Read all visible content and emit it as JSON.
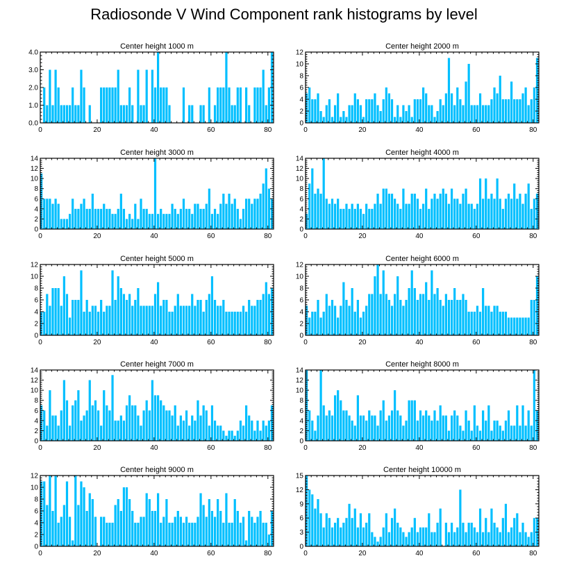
{
  "title": "Radiosonde V Wind Component rank histograms by level",
  "colors": {
    "bar": "#00BFFF",
    "axis": "#000000",
    "background": "#ffffff"
  },
  "chart_data": [
    {
      "type": "bar",
      "title": "Center height 1000 m",
      "xlim": [
        0,
        82
      ],
      "ylim": [
        0,
        4
      ],
      "xticks": [
        0,
        20,
        40,
        60,
        80
      ],
      "yticks": [
        0,
        1,
        2,
        3,
        4
      ],
      "ytick_labels": [
        "0.0",
        "1.0",
        "2.0",
        "3.0",
        "4.0"
      ],
      "values": [
        0,
        2,
        1,
        3,
        1,
        3,
        2,
        1,
        1,
        1,
        1,
        2,
        1,
        1,
        3,
        2,
        0,
        1,
        0,
        0,
        0,
        2,
        2,
        2,
        2,
        2,
        2,
        3,
        1,
        1,
        1,
        2,
        1,
        0,
        3,
        1,
        1,
        3,
        0,
        3,
        2,
        4,
        2,
        2,
        2,
        1,
        0,
        0,
        0,
        0,
        2,
        0,
        1,
        1,
        0,
        0,
        1,
        1,
        0,
        2,
        0,
        1,
        2,
        2,
        2,
        4,
        2,
        1,
        1,
        2,
        2,
        0,
        2,
        1,
        0,
        2,
        2,
        2,
        3,
        1,
        2,
        4
      ]
    },
    {
      "type": "bar",
      "title": "Center height 2000 m",
      "xlim": [
        0,
        82
      ],
      "ylim": [
        0,
        12
      ],
      "xticks": [
        0,
        20,
        40,
        60,
        80
      ],
      "yticks": [
        0,
        2,
        4,
        6,
        8,
        10,
        12
      ],
      "ytick_labels": [
        "0",
        "2",
        "4",
        "6",
        "8",
        "10",
        "12"
      ],
      "values": [
        5,
        6,
        4,
        4,
        5,
        2,
        1,
        3,
        4,
        1,
        3,
        5,
        1,
        2,
        1,
        3,
        3,
        5,
        4,
        3,
        1,
        4,
        4,
        4,
        5,
        3,
        2,
        4,
        6,
        5,
        4,
        1,
        3,
        1,
        3,
        2,
        3,
        1,
        4,
        4,
        4,
        6,
        5,
        3,
        3,
        1,
        2,
        4,
        3,
        5,
        11,
        5,
        3,
        6,
        4,
        3,
        7,
        10,
        3,
        3,
        3,
        5,
        3,
        3,
        3,
        4,
        6,
        5,
        8,
        4,
        4,
        4,
        7,
        4,
        4,
        4,
        5,
        6,
        3,
        4,
        6,
        11
      ]
    },
    {
      "type": "bar",
      "title": "Center height 3000 m",
      "xlim": [
        0,
        82
      ],
      "ylim": [
        0,
        14
      ],
      "xticks": [
        0,
        20,
        40,
        60,
        80
      ],
      "yticks": [
        0,
        2,
        4,
        6,
        8,
        10,
        12,
        14
      ],
      "ytick_labels": [
        "0",
        "2",
        "4",
        "6",
        "8",
        "10",
        "12",
        "14"
      ],
      "values": [
        11,
        6,
        6,
        6,
        5,
        6,
        5,
        2,
        2,
        2,
        3,
        6,
        4,
        4,
        5,
        6,
        4,
        4,
        7,
        4,
        4,
        4,
        5,
        4,
        4,
        3,
        3,
        4,
        7,
        4,
        2,
        3,
        2,
        5,
        2,
        6,
        4,
        4,
        3,
        3,
        14,
        3,
        4,
        3,
        3,
        3,
        5,
        4,
        3,
        4,
        6,
        4,
        4,
        3,
        5,
        5,
        4,
        4,
        5,
        8,
        3,
        4,
        3,
        5,
        7,
        5,
        7,
        5,
        6,
        4,
        2,
        4,
        6,
        6,
        5,
        6,
        6,
        7,
        9,
        12,
        8,
        6
      ]
    },
    {
      "type": "bar",
      "title": "Center height 4000 m",
      "xlim": [
        0,
        82
      ],
      "ylim": [
        0,
        14
      ],
      "xticks": [
        0,
        20,
        40,
        60,
        80
      ],
      "yticks": [
        0,
        2,
        4,
        6,
        8,
        10,
        12,
        14
      ],
      "ytick_labels": [
        "0",
        "2",
        "4",
        "6",
        "8",
        "10",
        "12",
        "14"
      ],
      "values": [
        3,
        9,
        12,
        7,
        8,
        7,
        14,
        6,
        5,
        6,
        5,
        6,
        4,
        4,
        5,
        4,
        5,
        4,
        5,
        4,
        3,
        5,
        4,
        4,
        5,
        7,
        5,
        8,
        8,
        7,
        7,
        6,
        5,
        4,
        8,
        5,
        5,
        7,
        7,
        6,
        4,
        5,
        8,
        4,
        6,
        7,
        6,
        7,
        8,
        7,
        5,
        8,
        6,
        6,
        5,
        7,
        8,
        5,
        5,
        4,
        5,
        10,
        6,
        10,
        6,
        7,
        6,
        10,
        6,
        4,
        6,
        7,
        6,
        9,
        6,
        7,
        5,
        7,
        9,
        4,
        6,
        7
      ]
    },
    {
      "type": "bar",
      "title": "Center height 5000 m",
      "xlim": [
        0,
        82
      ],
      "ylim": [
        0,
        12
      ],
      "xticks": [
        0,
        20,
        40,
        60,
        80
      ],
      "yticks": [
        0,
        2,
        4,
        6,
        8,
        10,
        12
      ],
      "ytick_labels": [
        "0",
        "2",
        "4",
        "6",
        "8",
        "10",
        "12"
      ],
      "values": [
        4,
        4,
        7,
        5,
        8,
        8,
        8,
        5,
        10,
        7,
        3,
        6,
        6,
        6,
        11,
        4,
        6,
        4,
        5,
        5,
        4,
        6,
        4,
        5,
        5,
        11,
        6,
        10,
        8,
        7,
        6,
        7,
        5,
        6,
        8,
        5,
        5,
        5,
        5,
        5,
        7,
        9,
        5,
        6,
        6,
        4,
        4,
        5,
        7,
        5,
        5,
        5,
        5,
        7,
        5,
        6,
        6,
        4,
        6,
        7,
        10,
        6,
        5,
        5,
        6,
        4,
        4,
        4,
        4,
        4,
        4,
        5,
        4,
        6,
        5,
        5,
        6,
        6,
        7,
        9,
        7,
        8
      ]
    },
    {
      "type": "bar",
      "title": "Center height 6000 m",
      "xlim": [
        0,
        82
      ],
      "ylim": [
        0,
        12
      ],
      "xticks": [
        0,
        20,
        40,
        60,
        80
      ],
      "yticks": [
        0,
        2,
        4,
        6,
        8,
        10,
        12
      ],
      "ytick_labels": [
        "0",
        "2",
        "4",
        "6",
        "8",
        "10",
        "12"
      ],
      "values": [
        5,
        3,
        4,
        4,
        6,
        3,
        4,
        7,
        5,
        6,
        5,
        3,
        5,
        9,
        6,
        5,
        8,
        4,
        6,
        3,
        4,
        5,
        7,
        7,
        10,
        12,
        7,
        11,
        7,
        6,
        5,
        7,
        10,
        6,
        5,
        6,
        8,
        11,
        8,
        6,
        7,
        7,
        9,
        6,
        11,
        7,
        8,
        6,
        5,
        7,
        6,
        6,
        8,
        6,
        6,
        7,
        6,
        4,
        4,
        4,
        5,
        4,
        8,
        5,
        5,
        4,
        5,
        5,
        4,
        4,
        4,
        3,
        3,
        3,
        3,
        3,
        3,
        3,
        3,
        6,
        6,
        10
      ]
    },
    {
      "type": "bar",
      "title": "Center height 7000 m",
      "xlim": [
        0,
        82
      ],
      "ylim": [
        0,
        14
      ],
      "xticks": [
        0,
        20,
        40,
        60,
        80
      ],
      "yticks": [
        0,
        2,
        4,
        6,
        8,
        10,
        12,
        14
      ],
      "ytick_labels": [
        "0",
        "2",
        "4",
        "6",
        "8",
        "10",
        "12",
        "14"
      ],
      "values": [
        7,
        6,
        3,
        10,
        5,
        5,
        3,
        6,
        12,
        8,
        3,
        7,
        8,
        10,
        4,
        5,
        6,
        12,
        7,
        8,
        6,
        3,
        10,
        7,
        6,
        13,
        4,
        4,
        5,
        4,
        7,
        9,
        7,
        7,
        5,
        3,
        6,
        8,
        6,
        12,
        9,
        9,
        8,
        7,
        6,
        6,
        5,
        7,
        3,
        5,
        4,
        6,
        3,
        5,
        4,
        8,
        5,
        7,
        6,
        3,
        7,
        4,
        3,
        3,
        2,
        1,
        2,
        2,
        1,
        2,
        4,
        3,
        7,
        5,
        4,
        2,
        4,
        2,
        4,
        3,
        4,
        7
      ]
    },
    {
      "type": "bar",
      "title": "Center height 8000 m",
      "xlim": [
        0,
        82
      ],
      "ylim": [
        0,
        14
      ],
      "xticks": [
        0,
        20,
        40,
        60,
        80
      ],
      "yticks": [
        0,
        2,
        4,
        6,
        8,
        10,
        12,
        14
      ],
      "ytick_labels": [
        "0",
        "2",
        "4",
        "6",
        "8",
        "10",
        "12",
        "14"
      ],
      "values": [
        14,
        6,
        4,
        2,
        5,
        14,
        7,
        5,
        6,
        5,
        9,
        10,
        8,
        6,
        6,
        5,
        4,
        3,
        9,
        5,
        5,
        4,
        6,
        5,
        5,
        3,
        6,
        8,
        4,
        5,
        6,
        10,
        6,
        5,
        3,
        4,
        8,
        8,
        8,
        4,
        6,
        5,
        6,
        5,
        4,
        6,
        4,
        7,
        5,
        5,
        2,
        5,
        6,
        5,
        3,
        2,
        6,
        4,
        2,
        7,
        3,
        2,
        6,
        4,
        7,
        2,
        4,
        4,
        3,
        2,
        4,
        6,
        3,
        3,
        7,
        3,
        7,
        3,
        6,
        3,
        14,
        6
      ]
    },
    {
      "type": "bar",
      "title": "Center height 9000 m",
      "xlim": [
        0,
        82
      ],
      "ylim": [
        0,
        12
      ],
      "xticks": [
        0,
        20,
        40,
        60,
        80
      ],
      "yticks": [
        0,
        2,
        4,
        6,
        8,
        10,
        12
      ],
      "ytick_labels": [
        "0",
        "2",
        "4",
        "6",
        "8",
        "10",
        "12"
      ],
      "values": [
        11,
        11,
        7,
        12,
        6,
        12,
        4,
        5,
        7,
        11,
        5,
        1,
        12,
        7,
        11,
        10,
        6,
        9,
        8,
        5,
        0,
        5,
        5,
        4,
        4,
        4,
        7,
        8,
        6,
        10,
        10,
        8,
        6,
        4,
        4,
        5,
        5,
        9,
        8,
        6,
        6,
        9,
        4,
        5,
        8,
        4,
        4,
        5,
        6,
        5,
        4,
        5,
        4,
        4,
        4,
        5,
        9,
        7,
        5,
        8,
        6,
        5,
        8,
        6,
        4,
        9,
        4,
        4,
        8,
        6,
        4,
        5,
        1,
        6,
        5,
        4,
        5,
        6,
        4,
        4,
        2,
        6
      ]
    },
    {
      "type": "bar",
      "title": "Center height 10000 m",
      "xlim": [
        0,
        82
      ],
      "ylim": [
        0,
        15
      ],
      "xticks": [
        0,
        20,
        40,
        60,
        80
      ],
      "yticks": [
        0,
        3,
        6,
        9,
        12,
        15
      ],
      "ytick_labels": [
        "0",
        "3",
        "6",
        "9",
        "12",
        "15"
      ],
      "values": [
        15,
        12,
        11,
        8,
        10,
        7,
        4,
        7,
        6,
        4,
        5,
        6,
        4,
        5,
        6,
        9,
        6,
        8,
        4,
        7,
        4,
        5,
        7,
        3,
        2,
        1,
        2,
        4,
        7,
        3,
        6,
        8,
        5,
        4,
        3,
        2,
        3,
        4,
        6,
        3,
        4,
        4,
        4,
        7,
        3,
        3,
        5,
        8,
        0,
        5,
        3,
        5,
        3,
        4,
        12,
        5,
        3,
        5,
        5,
        4,
        3,
        8,
        3,
        6,
        3,
        8,
        5,
        4,
        3,
        6,
        9,
        3,
        4,
        6,
        7,
        3,
        5,
        3,
        2,
        3,
        6,
        6
      ]
    }
  ]
}
